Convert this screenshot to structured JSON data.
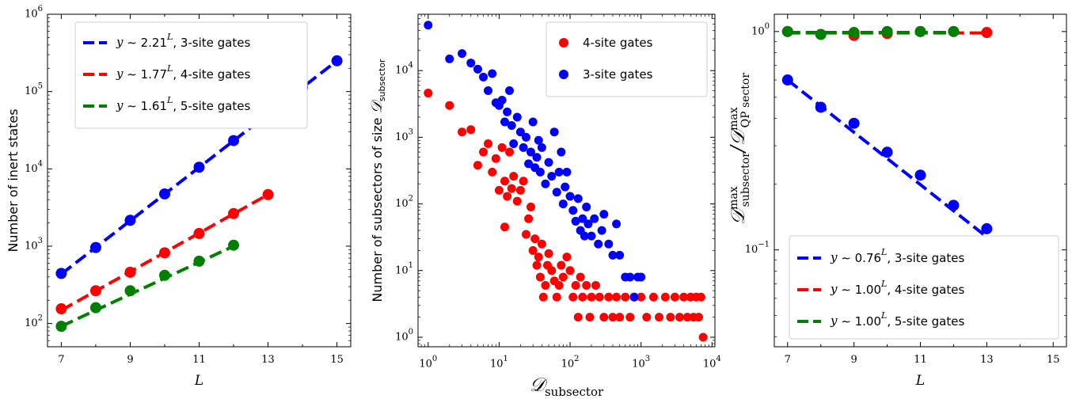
{
  "chart_data": [
    {
      "type": "line",
      "xlabel": "L",
      "ylabel": "Number of inert states",
      "yscale": "log",
      "xlim": [
        6.6,
        15.4
      ],
      "ylim": [
        50,
        1000000
      ],
      "xticks": [
        "7",
        "9",
        "11",
        "13",
        "15"
      ],
      "yticks": [
        "10^2",
        "10^3",
        "10^4",
        "10^5",
        "10^6"
      ],
      "legend_position": "top-left",
      "grid": false,
      "series": [
        {
          "name": "y ~ 2.21^L, 3-site gates",
          "color": "#0000ff",
          "x": [
            7,
            8,
            9,
            10,
            11,
            12,
            13,
            14,
            15
          ],
          "y": [
            444,
            960,
            2160,
            4740,
            10500,
            23200,
            51400,
            113000,
            250000
          ],
          "fit": [
            436,
            250000
          ]
        },
        {
          "name": "y ~ 1.77^L, 4-site gates",
          "color": "#ff0000",
          "x": [
            7,
            8,
            9,
            10,
            11,
            12,
            13
          ],
          "y": [
            155,
            265,
            460,
            820,
            1460,
            2640,
            4650
          ],
          "fit": [
            148,
            4650
          ]
        },
        {
          "name": "y ~ 1.61^L, 5-site gates",
          "color": "#008000",
          "x": [
            7,
            8,
            9,
            10,
            11,
            12
          ],
          "y": [
            92,
            160,
            265,
            420,
            640,
            1030
          ],
          "fit": [
            92,
            1000
          ]
        }
      ]
    },
    {
      "type": "scatter",
      "xlabel": "D_subsector",
      "ylabel": "Number of subsectors of size D_subsector",
      "xscale": "log",
      "yscale": "log",
      "xlim": [
        0.72,
        11000
      ],
      "ylim": [
        0.72,
        70000
      ],
      "xticks": [
        "10^0",
        "10^1",
        "10^2",
        "10^3",
        "10^4"
      ],
      "yticks": [
        "10^0",
        "10^1",
        "10^2",
        "10^3",
        "10^4"
      ],
      "legend_position": "top-right",
      "grid": false,
      "series": [
        {
          "name": "4-site gates",
          "color": "#ff0000",
          "points": [
            [
              1,
              4600
            ],
            [
              2,
              3000
            ],
            [
              3,
              1200
            ],
            [
              4,
              1300
            ],
            [
              5,
              380
            ],
            [
              6,
              600
            ],
            [
              7,
              800
            ],
            [
              8,
              300
            ],
            [
              9,
              480
            ],
            [
              10,
              160
            ],
            [
              11,
              700
            ],
            [
              12,
              220
            ],
            [
              13,
              130
            ],
            [
              14,
              600
            ],
            [
              15,
              170
            ],
            [
              16,
              260
            ],
            [
              18,
              110
            ],
            [
              20,
              160
            ],
            [
              22,
              220
            ],
            [
              12,
              45
            ],
            [
              24,
              35
            ],
            [
              26,
              60
            ],
            [
              28,
              90
            ],
            [
              30,
              20
            ],
            [
              32,
              30
            ],
            [
              34,
              12
            ],
            [
              36,
              16
            ],
            [
              38,
              8
            ],
            [
              40,
              25
            ],
            [
              42,
              4
            ],
            [
              45,
              6
            ],
            [
              48,
              12
            ],
            [
              50,
              18
            ],
            [
              55,
              10
            ],
            [
              60,
              7
            ],
            [
              65,
              4
            ],
            [
              70,
              6
            ],
            [
              75,
              12
            ],
            [
              80,
              8
            ],
            [
              90,
              16
            ],
            [
              100,
              10
            ],
            [
              110,
              4
            ],
            [
              120,
              6
            ],
            [
              130,
              2
            ],
            [
              140,
              8
            ],
            [
              150,
              4
            ],
            [
              170,
              6
            ],
            [
              190,
              2
            ],
            [
              200,
              4
            ],
            [
              230,
              6
            ],
            [
              260,
              4
            ],
            [
              300,
              2
            ],
            [
              350,
              4
            ],
            [
              400,
              2
            ],
            [
              450,
              4
            ],
            [
              500,
              2
            ],
            [
              600,
              4
            ],
            [
              700,
              2
            ],
            [
              800,
              4
            ],
            [
              1000,
              4
            ],
            [
              1200,
              2
            ],
            [
              1500,
              4
            ],
            [
              1800,
              2
            ],
            [
              2200,
              4
            ],
            [
              2600,
              2
            ],
            [
              3000,
              4
            ],
            [
              3500,
              2
            ],
            [
              4000,
              4
            ],
            [
              4500,
              2
            ],
            [
              5000,
              4
            ],
            [
              5500,
              2
            ],
            [
              6000,
              4
            ],
            [
              6500,
              2
            ],
            [
              7000,
              4
            ],
            [
              7500,
              1
            ]
          ]
        },
        {
          "name": "3-site gates",
          "color": "#0000ff",
          "points": [
            [
              1,
              48000
            ],
            [
              2,
              15000
            ],
            [
              3,
              18000
            ],
            [
              4,
              13000
            ],
            [
              5,
              10500
            ],
            [
              6,
              8000
            ],
            [
              7,
              5000
            ],
            [
              8,
              9000
            ],
            [
              9,
              3300
            ],
            [
              10,
              3000
            ],
            [
              11,
              3600
            ],
            [
              12,
              1700
            ],
            [
              13,
              2400
            ],
            [
              14,
              5000
            ],
            [
              15,
              1500
            ],
            [
              16,
              800
            ],
            [
              18,
              2000
            ],
            [
              20,
              1200
            ],
            [
              22,
              700
            ],
            [
              24,
              1000
            ],
            [
              26,
              400
            ],
            [
              28,
              600
            ],
            [
              30,
              1700
            ],
            [
              32,
              350
            ],
            [
              34,
              500
            ],
            [
              36,
              900
            ],
            [
              38,
              300
            ],
            [
              40,
              700
            ],
            [
              45,
              200
            ],
            [
              50,
              420
            ],
            [
              55,
              260
            ],
            [
              60,
              1200
            ],
            [
              65,
              150
            ],
            [
              70,
              300
            ],
            [
              75,
              600
            ],
            [
              80,
              100
            ],
            [
              85,
              180
            ],
            [
              90,
              300
            ],
            [
              100,
              130
            ],
            [
              110,
              80
            ],
            [
              120,
              55
            ],
            [
              130,
              120
            ],
            [
              140,
              40
            ],
            [
              150,
              60
            ],
            [
              160,
              33
            ],
            [
              170,
              90
            ],
            [
              180,
              50
            ],
            [
              200,
              33
            ],
            [
              220,
              60
            ],
            [
              250,
              25
            ],
            [
              280,
              40
            ],
            [
              300,
              70
            ],
            [
              350,
              25
            ],
            [
              400,
              17
            ],
            [
              450,
              50
            ],
            [
              500,
              17
            ],
            [
              600,
              8
            ],
            [
              700,
              8
            ],
            [
              800,
              4
            ],
            [
              900,
              8
            ],
            [
              1000,
              8
            ]
          ]
        }
      ]
    },
    {
      "type": "line",
      "xlabel": "L",
      "ylabel": "D^max_subsector / D^max_QP sector",
      "yscale": "log",
      "xlim": [
        6.6,
        15.4
      ],
      "ylim": [
        0.036,
        1.2
      ],
      "xticks": [
        "7",
        "9",
        "11",
        "13",
        "15"
      ],
      "yticks": [
        "10^-1",
        "10^0"
      ],
      "legend_position": "bottom-right",
      "grid": false,
      "series": [
        {
          "name": "y ~ 0.76^L, 3-site gates",
          "color": "#0000ff",
          "x": [
            7,
            8,
            9,
            10,
            11,
            12,
            13,
            14,
            15
          ],
          "y": [
            0.6,
            0.45,
            0.38,
            0.28,
            0.22,
            0.16,
            0.125,
            0.095,
            0.07
          ],
          "fit": [
            0.6,
            0.066
          ]
        },
        {
          "name": "y ~ 1.00^L, 4-site gates",
          "color": "#ff0000",
          "x": [
            7,
            8,
            9,
            10,
            11,
            12,
            13
          ],
          "y": [
            1.0,
            0.97,
            0.96,
            0.98,
            1.0,
            1.0,
            0.99
          ],
          "fit": [
            0.985,
            0.985
          ]
        },
        {
          "name": "y ~ 1.00^L, 5-site gates",
          "color": "#008000",
          "x": [
            7,
            8,
            9,
            10,
            11,
            12
          ],
          "y": [
            1.0,
            0.97,
            0.99,
            1.0,
            1.0,
            1.0
          ],
          "fit": [
            0.99,
            0.99
          ]
        }
      ]
    }
  ]
}
